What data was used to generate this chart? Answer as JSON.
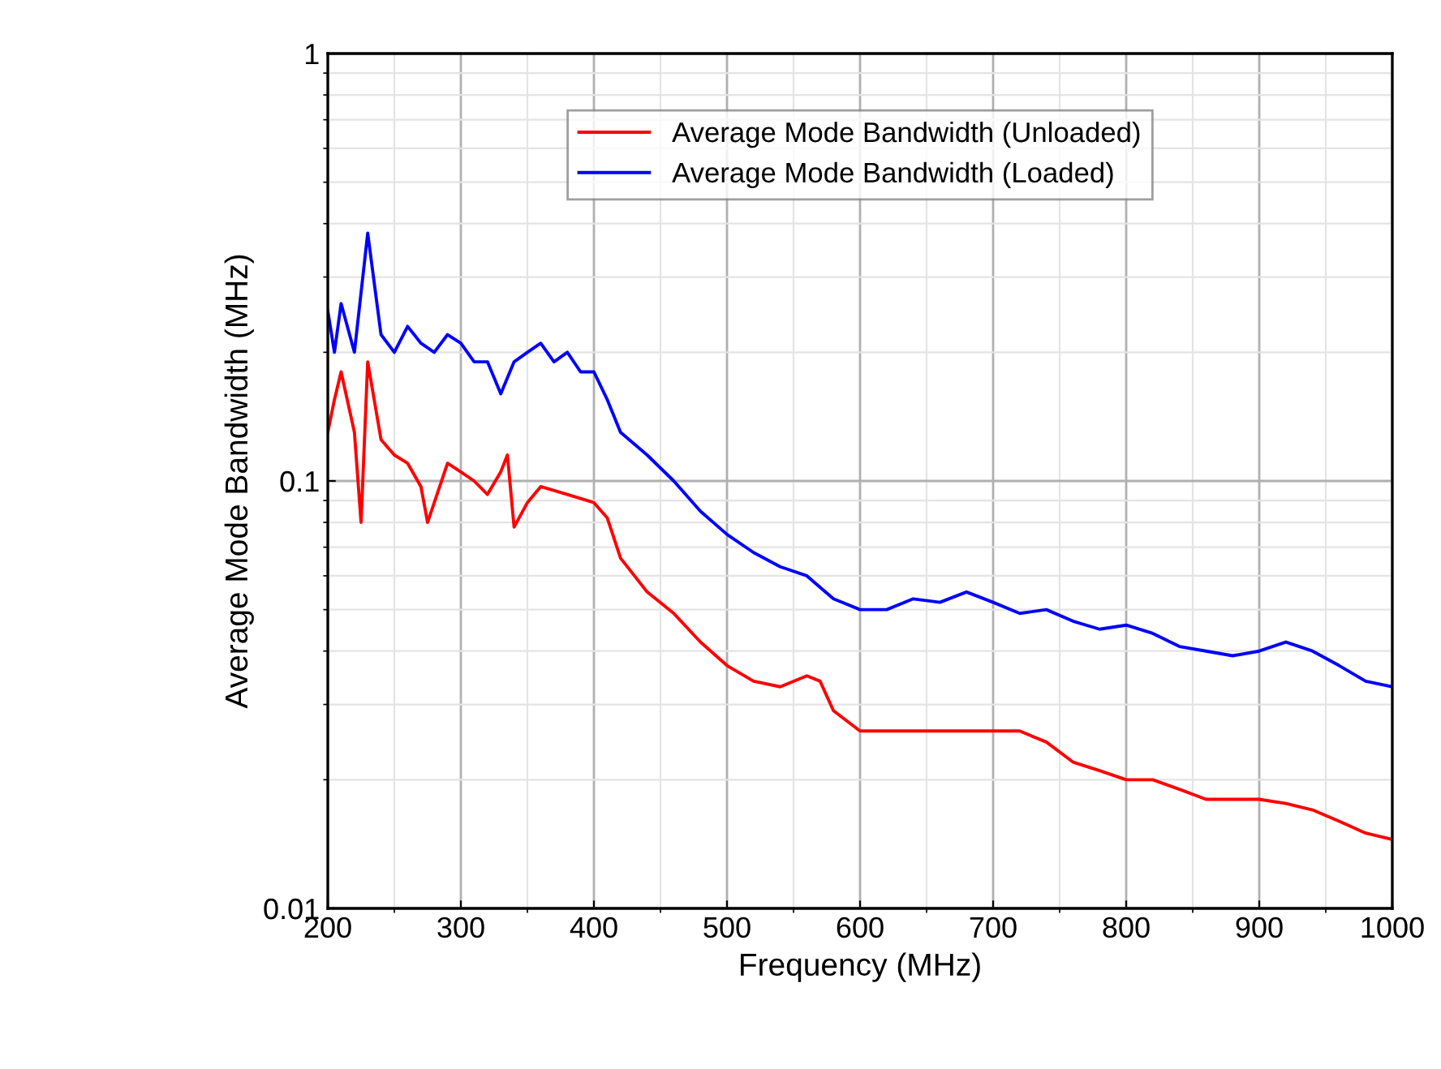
{
  "chart_data": {
    "type": "line",
    "xlabel": "Frequency (MHz)",
    "ylabel": "Average Mode Bandwidth (MHz)",
    "xlim": [
      200,
      1000
    ],
    "ylim": [
      0.01,
      1
    ],
    "xticks": [
      200,
      300,
      400,
      500,
      600,
      700,
      800,
      900,
      1000
    ],
    "yticks": [
      0.01,
      0.1,
      1
    ],
    "log": "y",
    "grid": true,
    "legend": "top",
    "marker": "none",
    "line_style": "solid",
    "series": [
      {
        "name": "Average Mode Bandwidth (Unloaded)",
        "color": "#ff0000",
        "x": [
          200,
          205,
          210,
          220,
          225,
          230,
          240,
          250,
          260,
          270,
          275,
          290,
          300,
          310,
          320,
          330,
          335,
          340,
          350,
          360,
          380,
          400,
          410,
          420,
          440,
          460,
          480,
          500,
          520,
          540,
          560,
          570,
          580,
          600,
          620,
          640,
          660,
          680,
          700,
          720,
          740,
          760,
          780,
          800,
          820,
          840,
          860,
          880,
          900,
          920,
          940,
          960,
          980,
          1000
        ],
        "values": [
          0.13,
          0.155,
          0.18,
          0.13,
          0.08,
          0.19,
          0.125,
          0.115,
          0.11,
          0.097,
          0.08,
          0.11,
          0.105,
          0.1,
          0.093,
          0.105,
          0.115,
          0.078,
          0.089,
          0.097,
          0.093,
          0.089,
          0.082,
          0.066,
          0.055,
          0.049,
          0.042,
          0.037,
          0.034,
          0.033,
          0.035,
          0.034,
          0.029,
          0.026,
          0.026,
          0.026,
          0.026,
          0.026,
          0.026,
          0.026,
          0.0245,
          0.022,
          0.021,
          0.02,
          0.02,
          0.019,
          0.018,
          0.018,
          0.018,
          0.0176,
          0.017,
          0.016,
          0.015,
          0.0145
        ]
      },
      {
        "name": "Average Mode Bandwidth (Loaded)",
        "color": "#0000ff",
        "x": [
          200,
          205,
          210,
          220,
          230,
          240,
          250,
          260,
          270,
          280,
          290,
          300,
          310,
          320,
          330,
          340,
          350,
          360,
          370,
          380,
          390,
          400,
          410,
          420,
          440,
          460,
          480,
          500,
          520,
          540,
          560,
          580,
          600,
          620,
          640,
          660,
          680,
          700,
          720,
          740,
          760,
          780,
          800,
          820,
          840,
          860,
          880,
          900,
          920,
          940,
          960,
          980,
          1000
        ],
        "values": [
          0.25,
          0.2,
          0.26,
          0.2,
          0.38,
          0.22,
          0.2,
          0.23,
          0.21,
          0.2,
          0.22,
          0.21,
          0.19,
          0.19,
          0.16,
          0.19,
          0.2,
          0.21,
          0.19,
          0.2,
          0.18,
          0.18,
          0.155,
          0.13,
          0.115,
          0.1,
          0.085,
          0.075,
          0.068,
          0.063,
          0.06,
          0.053,
          0.05,
          0.05,
          0.053,
          0.052,
          0.055,
          0.052,
          0.049,
          0.05,
          0.047,
          0.045,
          0.046,
          0.044,
          0.041,
          0.04,
          0.039,
          0.04,
          0.042,
          0.04,
          0.037,
          0.034,
          0.033
        ]
      }
    ]
  }
}
